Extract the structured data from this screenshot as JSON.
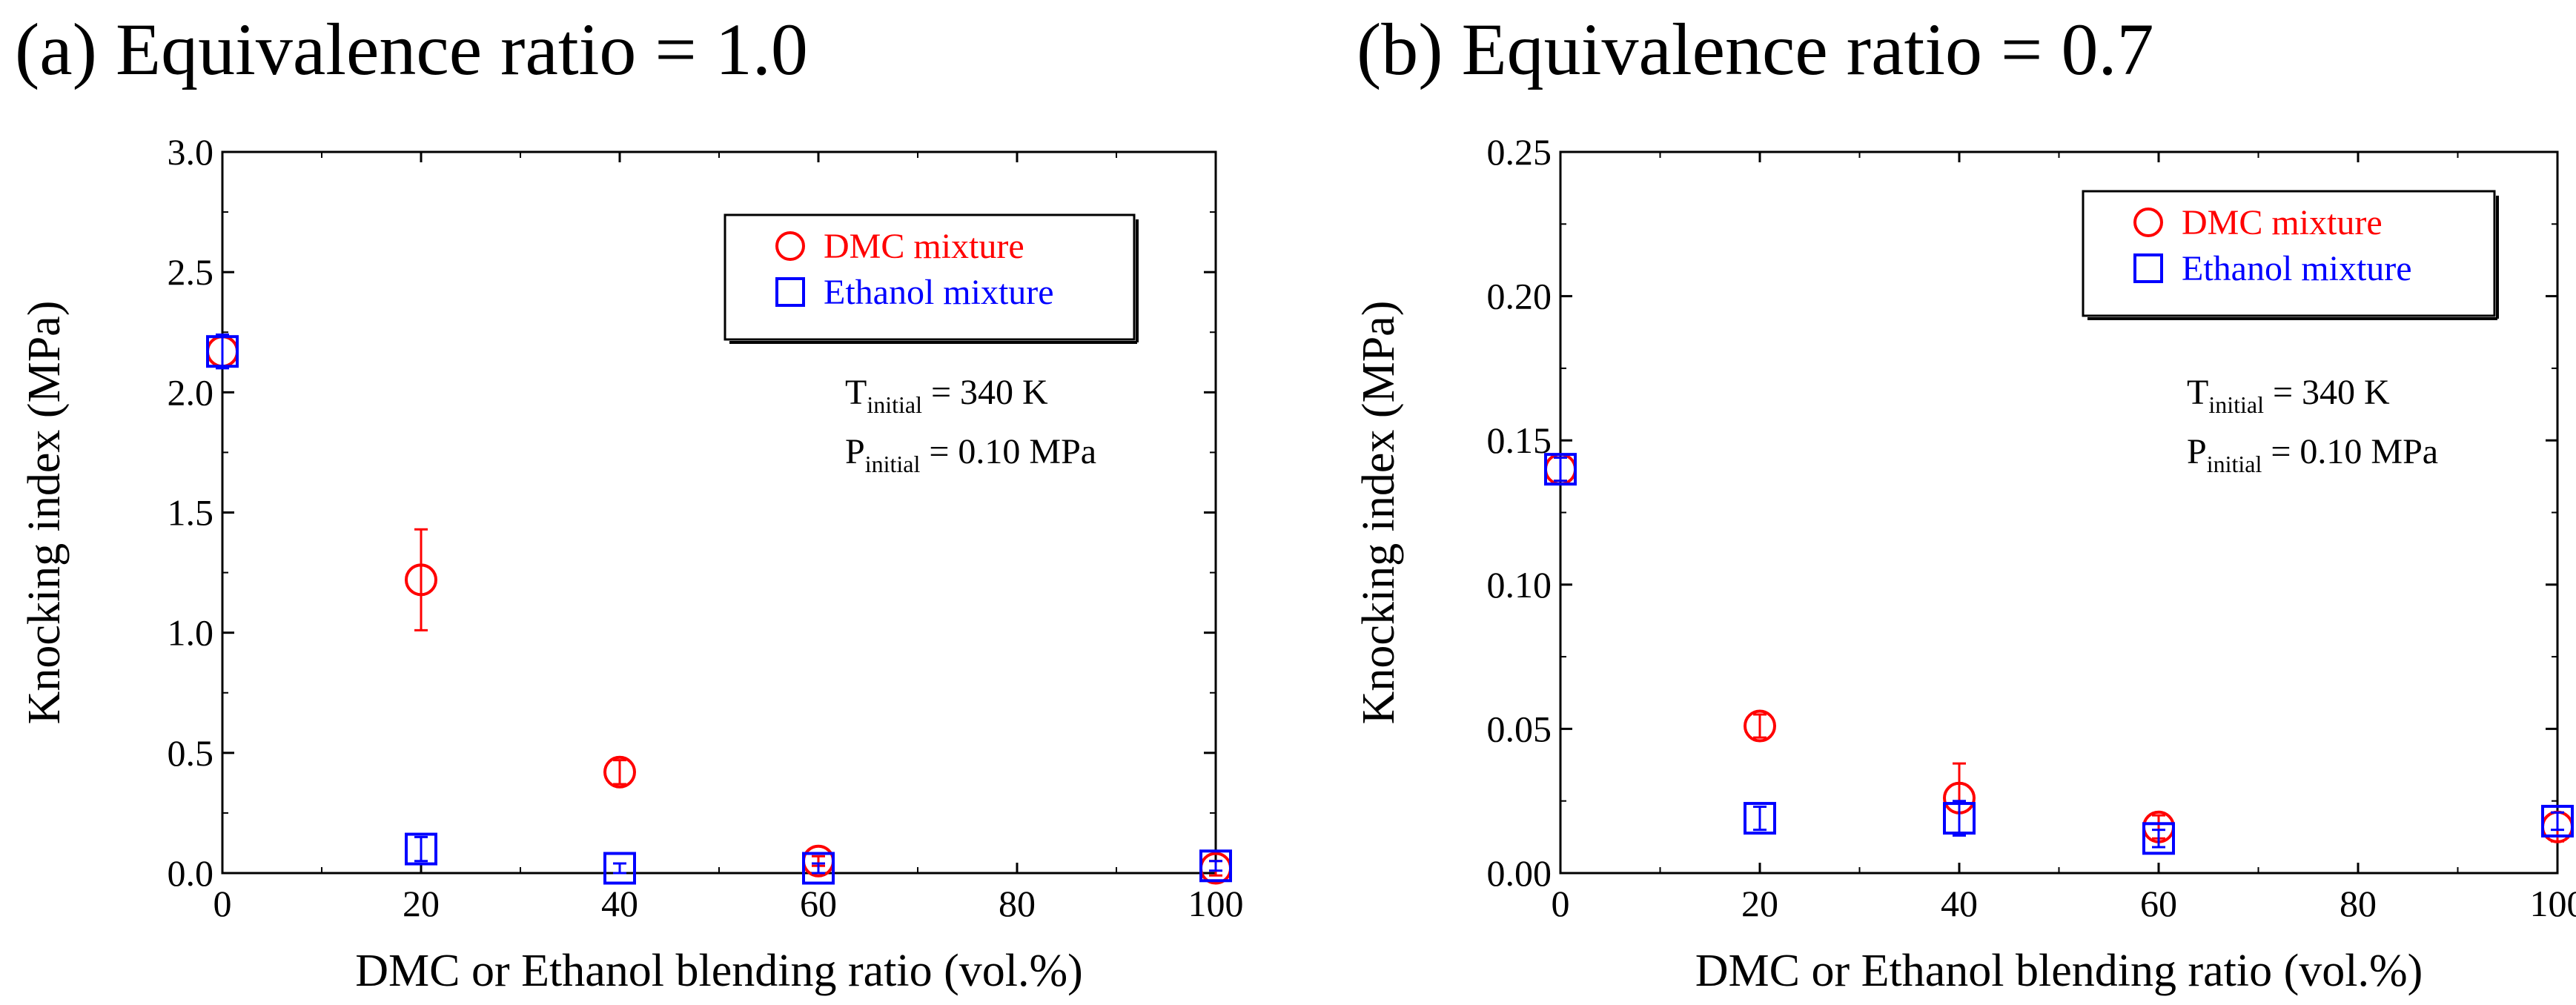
{
  "chart_data": [
    {
      "type": "scatter",
      "panel_title": "(a) Equivalence ratio = 1.0",
      "xlabel": "DMC or Ethanol blending ratio (vol.%)",
      "ylabel": "Knocking index (MPa)",
      "xlim": [
        0,
        100
      ],
      "ylim": [
        0,
        3.0
      ],
      "xticks": [
        "0",
        "20",
        "40",
        "60",
        "80",
        "100"
      ],
      "xtick_values": [
        0,
        20,
        40,
        60,
        80,
        100
      ],
      "yticks": [
        "0.0",
        "0.5",
        "1.0",
        "1.5",
        "2.0",
        "2.5",
        "3.0"
      ],
      "ytick_values": [
        0,
        0.5,
        1.0,
        1.5,
        2.0,
        2.5,
        3.0
      ],
      "legend_position": "top-right",
      "conditions": {
        "t_prefix": "T",
        "t_sub": "initial",
        "t_value": " = 340 K",
        "p_prefix": "P",
        "p_sub": "initial",
        "p_value": " = 0.10 MPa"
      },
      "series": [
        {
          "name": "DMC mixture",
          "marker": "circle",
          "color": "#ff0000",
          "x": [
            0,
            20,
            40,
            60,
            100
          ],
          "y": [
            2.17,
            1.22,
            0.42,
            0.05,
            0.02
          ],
          "err": [
            0.06,
            0.21,
            0.05,
            0.02,
            0.03
          ]
        },
        {
          "name": "Ethanol mixture",
          "marker": "square",
          "color": "#0000ff",
          "x": [
            0,
            20,
            40,
            60,
            100
          ],
          "y": [
            2.17,
            0.1,
            0.02,
            0.02,
            0.03
          ],
          "err": [
            0.07,
            0.05,
            0.02,
            0.02,
            0.02
          ]
        }
      ]
    },
    {
      "type": "scatter",
      "panel_title": "(b) Equivalence ratio = 0.7",
      "xlabel": "DMC or Ethanol blending ratio (vol.%)",
      "ylabel": "Knocking index (MPa)",
      "xlim": [
        0,
        100
      ],
      "ylim": [
        0,
        0.25
      ],
      "xticks": [
        "0",
        "20",
        "40",
        "60",
        "80",
        "100"
      ],
      "xtick_values": [
        0,
        20,
        40,
        60,
        80,
        100
      ],
      "yticks": [
        "0.00",
        "0.05",
        "0.10",
        "0.15",
        "0.20",
        "0.25"
      ],
      "ytick_values": [
        0,
        0.05,
        0.1,
        0.15,
        0.2,
        0.25
      ],
      "legend_position": "top-right",
      "conditions": {
        "t_prefix": "T",
        "t_sub": "initial",
        "t_value": " = 340 K",
        "p_prefix": "P",
        "p_sub": "initial",
        "p_value": " = 0.10 MPa"
      },
      "series": [
        {
          "name": "DMC mixture",
          "marker": "circle",
          "color": "#ff0000",
          "x": [
            0,
            20,
            40,
            60,
            100
          ],
          "y": [
            0.14,
            0.051,
            0.026,
            0.016,
            0.016
          ],
          "err": [
            0.004,
            0.004,
            0.012,
            0.004,
            0.005
          ]
        },
        {
          "name": "Ethanol mixture",
          "marker": "square",
          "color": "#0000ff",
          "x": [
            0,
            20,
            40,
            60,
            100
          ],
          "y": [
            0.14,
            0.019,
            0.019,
            0.012,
            0.018
          ],
          "err": [
            0.004,
            0.004,
            0.006,
            0.003,
            0.003
          ]
        }
      ]
    }
  ]
}
